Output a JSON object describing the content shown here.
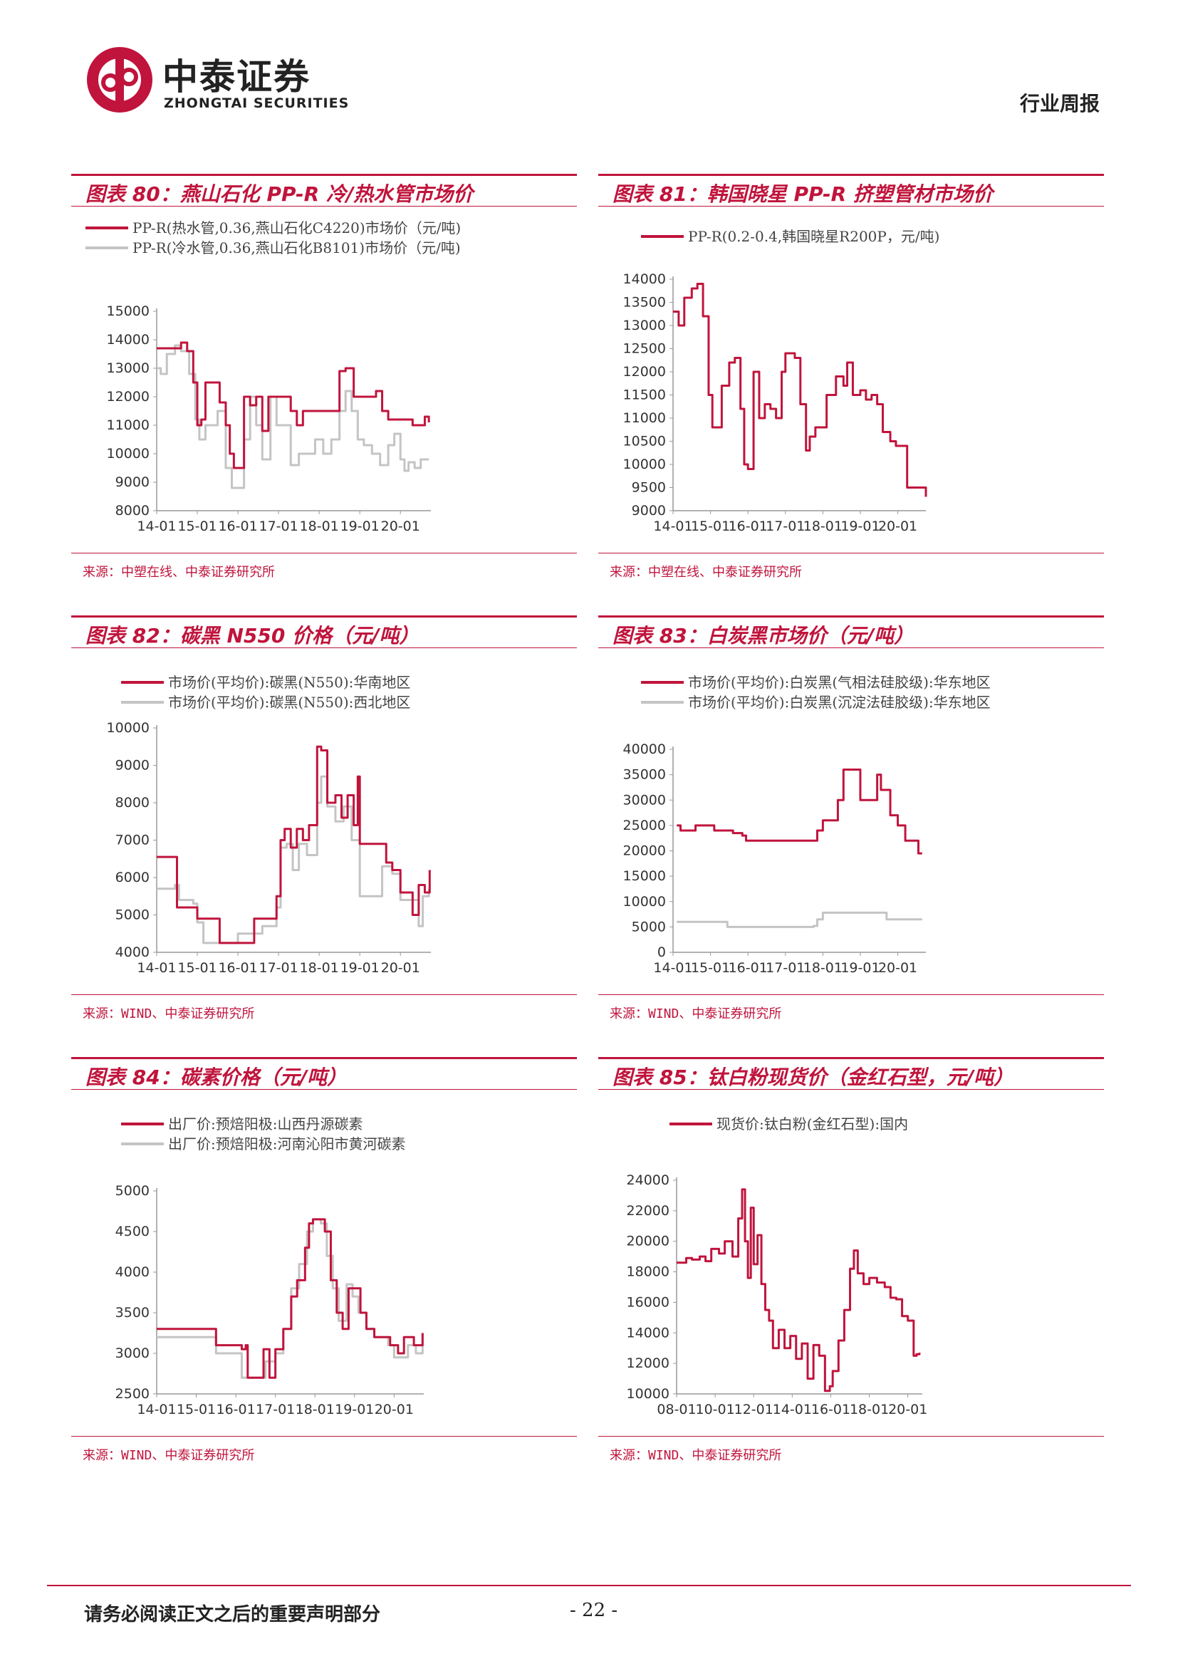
{
  "header": {
    "brand_cn": "中泰证券",
    "brand_en": "ZHONGTAI SECURITIES",
    "report_type": "行业周报",
    "logo_icon": "zhongtai-logo-icon",
    "brand_color": "#c0143c"
  },
  "footer": {
    "note": "请务必阅读正文之后的重要声明部分",
    "page": "- 22 -"
  },
  "charts": [
    {
      "title": "图表 80：燕山石化 PP-R 冷/热水管市场价",
      "source": "来源：中塑在线、中泰证券研究所"
    },
    {
      "title": "图表 81：韩国晓星 PP-R 挤塑管材市场价",
      "source": "来源：中塑在线、中泰证券研究所"
    },
    {
      "title": "图表 82：碳黑 N550 价格（元/吨）",
      "source": "来源：WIND、中泰证券研究所"
    },
    {
      "title": "图表 83：白炭黑市场价（元/吨）",
      "source": "来源：WIND、中泰证券研究所"
    },
    {
      "title": "图表 84：碳素价格（元/吨）",
      "source": "来源：WIND、中泰证券研究所"
    },
    {
      "title": "图表 85：钛白粉现货价（金红石型，元/吨）",
      "source": "来源：WIND、中泰证券研究所"
    }
  ],
  "chart_data": [
    {
      "type": "line",
      "title": "图表 80：燕山石化 PP-R 冷/热水管市场价",
      "x_range": [
        2014.0,
        2020.75
      ],
      "x_ticks": [
        "14-01",
        "15-01",
        "16-01",
        "17-01",
        "18-01",
        "19-01",
        "20-01"
      ],
      "ylim": [
        8000,
        15000
      ],
      "y_ticks": [
        8000,
        9000,
        10000,
        11000,
        12000,
        13000,
        14000,
        15000
      ],
      "grid": false,
      "legend_position": "top",
      "series": [
        {
          "name": "PP-R(热水管,0.36,燕山石化C4220)市场价（元/吨)",
          "color": "#c0143c",
          "x": [
            2014.0,
            2014.25,
            2014.45,
            2014.6,
            2014.75,
            2014.9,
            2015.0,
            2015.1,
            2015.2,
            2015.3,
            2015.4,
            2015.55,
            2015.7,
            2015.8,
            2015.9,
            2016.0,
            2016.15,
            2016.3,
            2016.45,
            2016.6,
            2016.75,
            2016.9,
            2017.1,
            2017.3,
            2017.45,
            2017.6,
            2017.8,
            2018.0,
            2018.2,
            2018.4,
            2018.5,
            2018.65,
            2018.85,
            2019.0,
            2019.2,
            2019.4,
            2019.55,
            2019.7,
            2019.9,
            2020.1,
            2020.3,
            2020.5,
            2020.6,
            2020.7
          ],
          "values": [
            13700,
            13700,
            13700,
            13900,
            13600,
            12500,
            11000,
            11200,
            12500,
            12500,
            12500,
            11800,
            11000,
            10000,
            9500,
            9500,
            12000,
            11700,
            12000,
            10800,
            12000,
            12000,
            12000,
            11500,
            11000,
            11500,
            11500,
            11500,
            11500,
            11500,
            12900,
            13000,
            12000,
            12000,
            12000,
            12200,
            11500,
            11200,
            11200,
            11200,
            11000,
            11000,
            11300,
            11100
          ]
        },
        {
          "name": "PP-R(冷水管,0.36,燕山石化B8101)市场价（元/吨)",
          "color": "#c4c4c4",
          "x": [
            2014.0,
            2014.1,
            2014.25,
            2014.45,
            2014.6,
            2014.8,
            2014.95,
            2015.05,
            2015.2,
            2015.35,
            2015.5,
            2015.7,
            2015.85,
            2016.0,
            2016.15,
            2016.3,
            2016.45,
            2016.6,
            2016.8,
            2016.95,
            2017.1,
            2017.3,
            2017.5,
            2017.7,
            2017.9,
            2018.1,
            2018.3,
            2018.5,
            2018.65,
            2018.8,
            2018.95,
            2019.1,
            2019.3,
            2019.5,
            2019.7,
            2019.85,
            2020.0,
            2020.1,
            2020.2,
            2020.35,
            2020.5,
            2020.7
          ],
          "values": [
            13000,
            12800,
            13500,
            13800,
            13600,
            12800,
            11200,
            10500,
            11000,
            11000,
            11500,
            9500,
            8800,
            8800,
            10500,
            12000,
            11000,
            9800,
            12000,
            11000,
            11000,
            9600,
            10000,
            10000,
            10500,
            10000,
            10500,
            11500,
            12200,
            11500,
            10500,
            10300,
            10000,
            9600,
            10300,
            10700,
            9800,
            9400,
            9700,
            9500,
            9800,
            9800
          ]
        }
      ]
    },
    {
      "type": "line",
      "title": "图表 81：韩国晓星 PP-R 挤塑管材市场价",
      "x_range": [
        2014.0,
        2020.75
      ],
      "x_ticks": [
        "14-01",
        "15-01",
        "16-01",
        "17-01",
        "18-01",
        "19-01",
        "20-01"
      ],
      "ylim": [
        9000,
        14000
      ],
      "y_ticks": [
        9000,
        9500,
        10000,
        10500,
        11000,
        11500,
        12000,
        12500,
        13000,
        13500,
        14000
      ],
      "grid": false,
      "legend_position": "top",
      "series": [
        {
          "name": "PP-R(0.2-0.4,韩国晓星R200P，元/吨)",
          "color": "#c0143c",
          "x": [
            2014.0,
            2014.15,
            2014.3,
            2014.5,
            2014.65,
            2014.8,
            2014.95,
            2015.05,
            2015.15,
            2015.3,
            2015.5,
            2015.65,
            2015.8,
            2015.9,
            2016.0,
            2016.15,
            2016.3,
            2016.45,
            2016.6,
            2016.75,
            2016.9,
            2017.0,
            2017.25,
            2017.4,
            2017.55,
            2017.65,
            2017.8,
            2017.95,
            2018.1,
            2018.35,
            2018.55,
            2018.65,
            2018.8,
            2019.0,
            2019.15,
            2019.3,
            2019.45,
            2019.6,
            2019.8,
            2019.95,
            2020.1,
            2020.25,
            2020.35,
            2020.45,
            2020.75
          ],
          "values": [
            13300,
            13000,
            13600,
            13800,
            13900,
            13200,
            11500,
            10800,
            10800,
            11700,
            12200,
            12300,
            11200,
            10000,
            9900,
            12000,
            11000,
            11300,
            11200,
            11000,
            12000,
            12400,
            12300,
            11300,
            10300,
            10600,
            10800,
            10800,
            11500,
            11900,
            11700,
            12200,
            11500,
            11600,
            11400,
            11500,
            11300,
            10700,
            10500,
            10400,
            10400,
            9500,
            9500,
            9500,
            9300
          ]
        }
      ]
    },
    {
      "type": "line",
      "title": "图表 82：碳黑 N550 价格（元/吨）",
      "x_range": [
        2014.0,
        2020.75
      ],
      "x_ticks": [
        "14-01",
        "15-01",
        "16-01",
        "17-01",
        "18-01",
        "19-01",
        "20-01"
      ],
      "ylim": [
        4000,
        10000
      ],
      "y_ticks": [
        4000,
        5000,
        6000,
        7000,
        8000,
        9000,
        10000
      ],
      "grid": false,
      "legend_position": "top",
      "series": [
        {
          "name": "市场价(平均价):碳黑(N550):华南地区",
          "color": "#c0143c",
          "x": [
            2014.0,
            2014.45,
            2014.5,
            2014.9,
            2015.0,
            2015.5,
            2015.55,
            2016.0,
            2016.35,
            2016.4,
            2016.6,
            2016.95,
            2017.05,
            2017.15,
            2017.3,
            2017.45,
            2017.6,
            2017.75,
            2017.95,
            2018.05,
            2018.2,
            2018.4,
            2018.55,
            2018.7,
            2018.85,
            2018.95,
            2019.0,
            2019.4,
            2019.65,
            2019.8,
            2020.0,
            2020.2,
            2020.3,
            2020.45,
            2020.6,
            2020.72
          ],
          "values": [
            6550,
            6550,
            5200,
            5200,
            4900,
            4900,
            4250,
            4250,
            4250,
            4900,
            4900,
            5500,
            7000,
            7300,
            6800,
            7300,
            7000,
            7400,
            9500,
            9400,
            8000,
            8200,
            7600,
            8200,
            7400,
            8700,
            6900,
            6900,
            6400,
            6200,
            5600,
            5600,
            5000,
            5800,
            5600,
            6200
          ]
        },
        {
          "name": "市场价(平均价):碳黑(N550):西北地区",
          "color": "#c4c4c4",
          "x": [
            2014.0,
            2014.3,
            2014.45,
            2014.55,
            2014.9,
            2015.0,
            2015.15,
            2015.5,
            2016.0,
            2016.35,
            2016.6,
            2016.95,
            2017.05,
            2017.2,
            2017.35,
            2017.5,
            2017.7,
            2017.95,
            2018.05,
            2018.2,
            2018.4,
            2018.6,
            2018.8,
            2019.0,
            2019.4,
            2019.55,
            2019.8,
            2020.0,
            2020.25,
            2020.45,
            2020.55,
            2020.7
          ],
          "values": [
            5700,
            5700,
            5800,
            5400,
            5300,
            4800,
            4250,
            4250,
            4500,
            4500,
            4700,
            5200,
            6800,
            6900,
            6200,
            6900,
            6600,
            8000,
            8700,
            7900,
            7500,
            7900,
            7000,
            5500,
            5500,
            6300,
            6100,
            5400,
            5400,
            4700,
            5500,
            5700
          ]
        }
      ]
    },
    {
      "type": "line",
      "title": "图表 83：白炭黑市场价（元/吨）",
      "x_range": [
        2014.0,
        2020.75
      ],
      "x_ticks": [
        "14-01",
        "15-01",
        "16-01",
        "17-01",
        "18-01",
        "19-01",
        "20-01"
      ],
      "ylim": [
        0,
        40000
      ],
      "y_ticks": [
        0,
        5000,
        10000,
        15000,
        20000,
        25000,
        30000,
        35000,
        40000
      ],
      "grid": false,
      "legend_position": "top",
      "series": [
        {
          "name": "市场价(平均价):白炭黑(气相法硅胶级):华东地区",
          "color": "#c0143c",
          "x": [
            2014.1,
            2014.2,
            2014.5,
            2014.6,
            2015.0,
            2015.1,
            2015.5,
            2015.6,
            2015.85,
            2015.95,
            2017.0,
            2017.7,
            2017.85,
            2018.0,
            2018.3,
            2018.4,
            2018.55,
            2018.85,
            2019.0,
            2019.3,
            2019.45,
            2019.55,
            2019.8,
            2020.0,
            2020.2,
            2020.45,
            2020.55,
            2020.65
          ],
          "values": [
            25000,
            24000,
            24000,
            25000,
            25000,
            24000,
            24000,
            23500,
            23000,
            22000,
            22000,
            22000,
            24000,
            26000,
            26000,
            30000,
            36000,
            36000,
            30000,
            30000,
            35000,
            32000,
            27000,
            25000,
            22000,
            22000,
            19500,
            19500
          ]
        },
        {
          "name": "市场价(平均价):白炭黑(沉淀法硅胶级):华东地区",
          "color": "#c4c4c4",
          "x": [
            2014.1,
            2015.35,
            2015.45,
            2016.5,
            2017.6,
            2017.75,
            2017.85,
            2018.0,
            2019.0,
            2019.6,
            2019.7,
            2020.0,
            2020.65
          ],
          "values": [
            6000,
            6000,
            5000,
            5000,
            5000,
            5200,
            6500,
            7800,
            7800,
            7800,
            6500,
            6500,
            6500
          ]
        }
      ]
    },
    {
      "type": "line",
      "title": "图表 84：碳素价格（元/吨）",
      "x_range": [
        2014.0,
        2020.75
      ],
      "x_ticks": [
        "14-01",
        "15-01",
        "16-01",
        "17-01",
        "18-01",
        "19-01",
        "20-01"
      ],
      "ylim": [
        2500,
        5000
      ],
      "y_ticks": [
        2500,
        3000,
        3500,
        4000,
        4500,
        5000
      ],
      "grid": false,
      "legend_position": "top",
      "series": [
        {
          "name": "出厂价:预焙阳极:山西丹源碳素",
          "color": "#c0143c",
          "x": [
            2014.0,
            2015.45,
            2015.5,
            2016.1,
            2016.15,
            2016.25,
            2016.3,
            2016.55,
            2016.7,
            2016.85,
            2017.0,
            2017.2,
            2017.4,
            2017.55,
            2017.75,
            2017.85,
            2017.95,
            2018.1,
            2018.25,
            2018.4,
            2018.55,
            2018.7,
            2018.85,
            2019.0,
            2019.15,
            2019.3,
            2019.5,
            2019.7,
            2019.9,
            2020.1,
            2020.25,
            2020.4,
            2020.5,
            2020.65,
            2020.72
          ],
          "values": [
            3300,
            3300,
            3100,
            3100,
            3050,
            3100,
            2700,
            2700,
            3050,
            2700,
            3050,
            3300,
            3700,
            3900,
            4300,
            4600,
            4650,
            4650,
            4500,
            3900,
            3500,
            3300,
            3800,
            3800,
            3500,
            3300,
            3200,
            3200,
            3100,
            3000,
            3200,
            3200,
            3100,
            3100,
            3250
          ]
        },
        {
          "name": "出厂价:预焙阳极:河南沁阳市黄河碳素",
          "color": "#c4c4c4",
          "x": [
            2014.0,
            2015.45,
            2015.5,
            2016.0,
            2016.15,
            2016.25,
            2016.55,
            2016.75,
            2016.9,
            2017.0,
            2017.2,
            2017.4,
            2017.6,
            2017.8,
            2017.95,
            2018.15,
            2018.3,
            2018.45,
            2018.6,
            2018.8,
            2018.95,
            2019.1,
            2019.3,
            2019.5,
            2019.7,
            2019.85,
            2020.0,
            2020.2,
            2020.35,
            2020.55,
            2020.65,
            2020.72
          ],
          "values": [
            3200,
            3200,
            3000,
            3000,
            2700,
            2700,
            2700,
            2900,
            2900,
            3000,
            3300,
            3800,
            4100,
            4500,
            4650,
            4600,
            4200,
            3800,
            3400,
            3850,
            3700,
            3500,
            3300,
            3200,
            3200,
            3100,
            2950,
            2950,
            3100,
            3000,
            3000,
            3250
          ]
        }
      ]
    },
    {
      "type": "line",
      "title": "图表 85：钛白粉现货价（金红石型，元/吨）",
      "x_range": [
        2008.0,
        2020.75
      ],
      "x_ticks": [
        "08-01",
        "10-01",
        "12-01",
        "14-01",
        "16-01",
        "18-01",
        "20-01"
      ],
      "ylim": [
        10000,
        24000
      ],
      "y_ticks": [
        10000,
        12000,
        14000,
        16000,
        18000,
        20000,
        22000,
        24000
      ],
      "grid": false,
      "legend_position": "top",
      "series": [
        {
          "name": "现货价:钛白粉(金红石型):国内",
          "color": "#c0143c",
          "x": [
            2008.0,
            2008.5,
            2008.8,
            2009.2,
            2009.5,
            2009.8,
            2010.2,
            2010.5,
            2010.9,
            2011.2,
            2011.4,
            2011.55,
            2011.7,
            2011.85,
            2012.0,
            2012.2,
            2012.4,
            2012.6,
            2012.8,
            2013.0,
            2013.3,
            2013.6,
            2013.9,
            2014.2,
            2014.5,
            2014.8,
            2015.1,
            2015.4,
            2015.7,
            2015.95,
            2016.1,
            2016.4,
            2016.7,
            2017.0,
            2017.2,
            2017.4,
            2017.7,
            2018.0,
            2018.4,
            2018.8,
            2019.1,
            2019.4,
            2019.7,
            2020.0,
            2020.3,
            2020.45,
            2020.6
          ],
          "values": [
            18600,
            18900,
            18800,
            19000,
            18700,
            19500,
            19200,
            20000,
            19000,
            21500,
            23400,
            20000,
            17600,
            22200,
            18500,
            20400,
            17200,
            15500,
            14800,
            13000,
            14200,
            13000,
            13800,
            12300,
            13300,
            11000,
            13200,
            12500,
            10200,
            10500,
            11500,
            13500,
            15500,
            18200,
            19400,
            17900,
            17200,
            17600,
            17300,
            17000,
            16300,
            16200,
            15100,
            14800,
            12500,
            12600,
            12700
          ]
        }
      ]
    }
  ]
}
